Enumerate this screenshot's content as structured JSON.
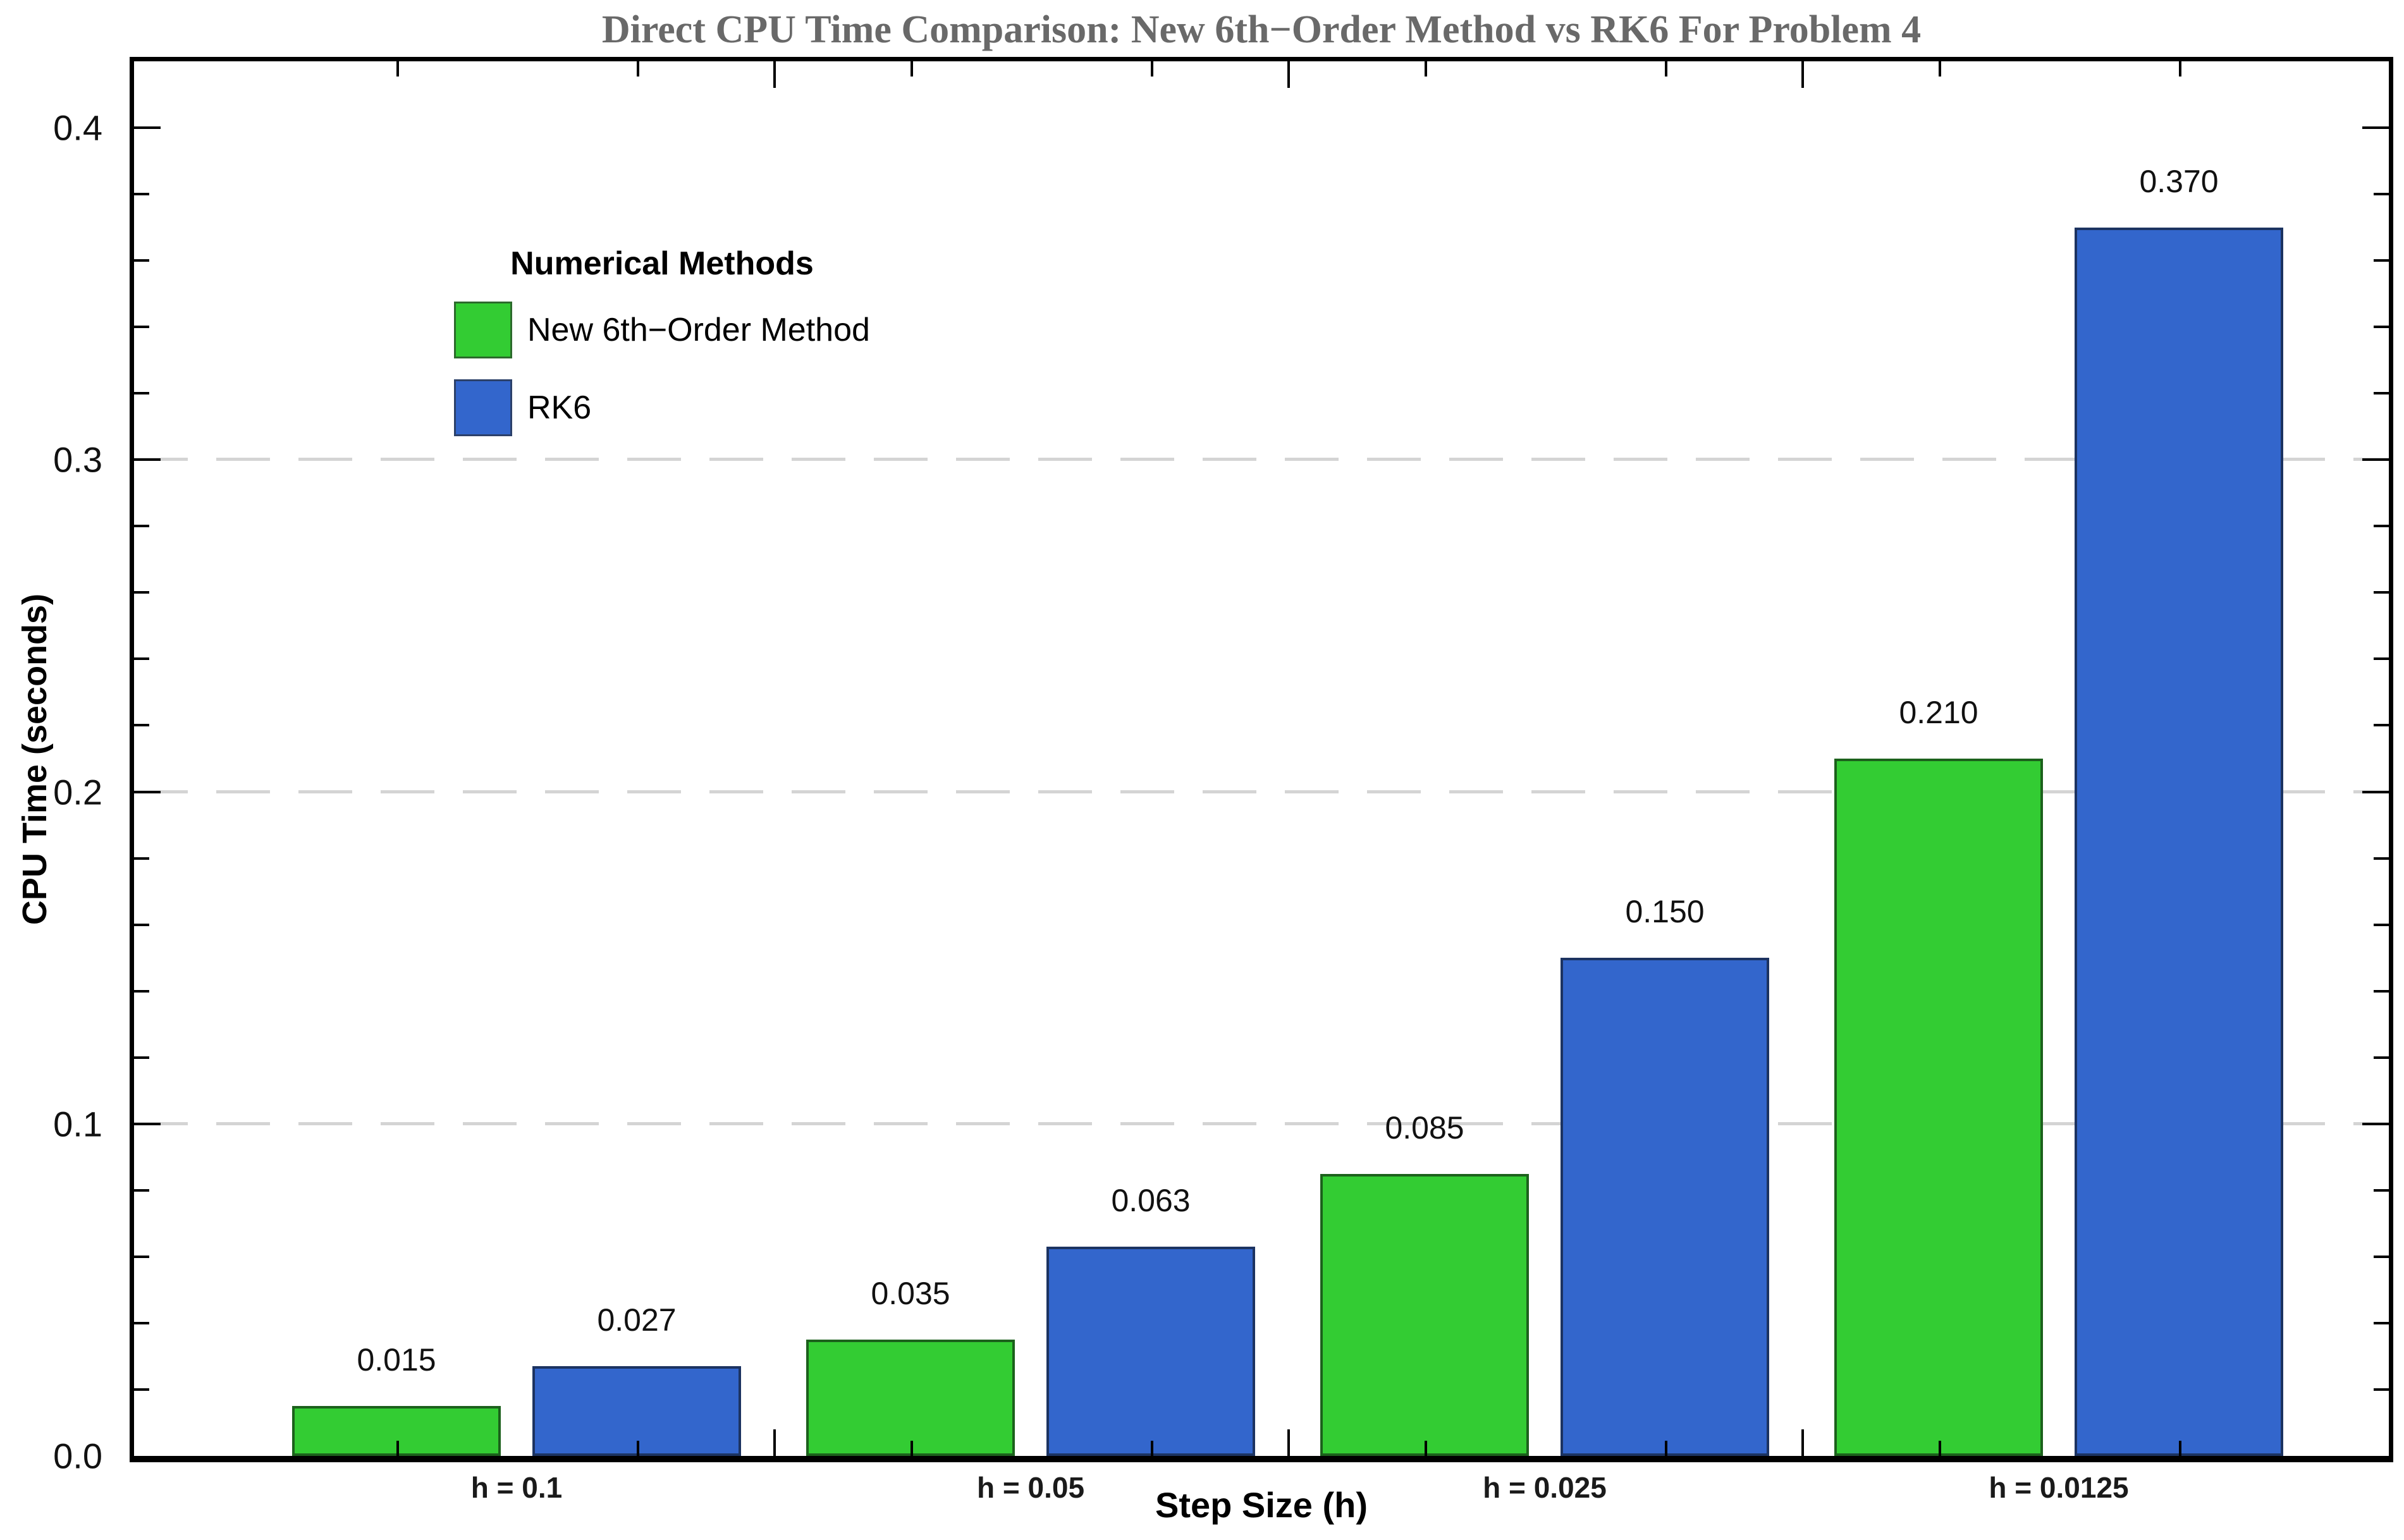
{
  "chart_data": {
    "type": "bar",
    "title": "Direct CPU Time Comparison: New 6th−Order Method vs RK6 For Problem 4",
    "xlabel": "Step Size (h)",
    "ylabel": "CPU Time (seconds)",
    "legend_title": "Numerical Methods",
    "legend_position": "upper-left-inside",
    "categories": [
      "h = 0.1",
      "h = 0.05",
      "h = 0.025",
      "h = 0.0125"
    ],
    "series": [
      {
        "name": "New 6th−Order Method",
        "color": "#33cc33",
        "values": [
          0.015,
          0.035,
          0.085,
          0.21
        ],
        "labels": [
          "0.015",
          "0.035",
          "0.085",
          "0.210"
        ]
      },
      {
        "name": "RK6",
        "color": "#3366cc",
        "values": [
          0.027,
          0.063,
          0.15,
          0.37
        ],
        "labels": [
          "0.027",
          "0.063",
          "0.150",
          "0.370"
        ]
      }
    ],
    "ylim": [
      0,
      0.42
    ],
    "yticks": [
      {
        "value": 0.0,
        "label": "0.0"
      },
      {
        "value": 0.1,
        "label": "0.1"
      },
      {
        "value": 0.2,
        "label": "0.2"
      },
      {
        "value": 0.3,
        "label": "0.3"
      },
      {
        "value": 0.4,
        "label": "0.4"
      }
    ],
    "minor_tick_step": 0.02,
    "gridlines": [
      0.1,
      0.2,
      0.3
    ],
    "grid_on": true,
    "grid_color": "#d4d4d4",
    "title_color": "#696969"
  }
}
